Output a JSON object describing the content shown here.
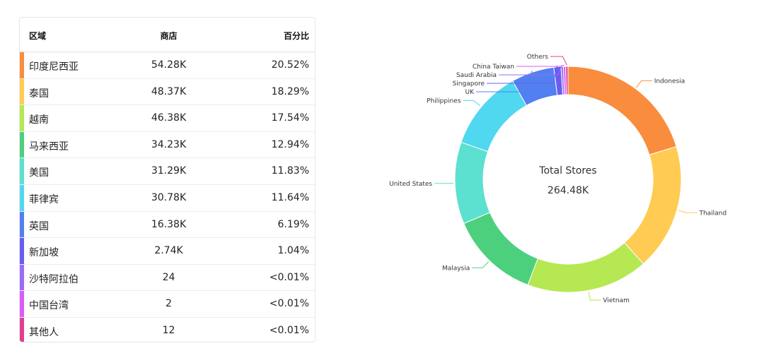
{
  "table": {
    "headers": {
      "region": "区域",
      "stores": "商店",
      "percent": "百分比"
    },
    "rows": [
      {
        "region": "印度尼西亚",
        "stores": "54.28K",
        "percent": "20.52%",
        "color": "#fa8c3e"
      },
      {
        "region": "泰国",
        "stores": "48.37K",
        "percent": "18.29%",
        "color": "#ffcb52"
      },
      {
        "region": "越南",
        "stores": "46.38K",
        "percent": "17.54%",
        "color": "#b5e853"
      },
      {
        "region": "马来西亚",
        "stores": "34.23K",
        "percent": "12.94%",
        "color": "#4cd07d"
      },
      {
        "region": "美国",
        "stores": "31.29K",
        "percent": "11.83%",
        "color": "#5ce0d0"
      },
      {
        "region": "菲律宾",
        "stores": "30.78K",
        "percent": "11.64%",
        "color": "#4fd8ef"
      },
      {
        "region": "英国",
        "stores": "16.38K",
        "percent": "6.19%",
        "color": "#5280f0"
      },
      {
        "region": "新加坡",
        "stores": "2.74K",
        "percent": "1.04%",
        "color": "#6a5cf0"
      },
      {
        "region": "沙特阿拉伯",
        "stores": "24",
        "percent": "<0.01%",
        "color": "#9b6cf5"
      },
      {
        "region": "中国台湾",
        "stores": "2",
        "percent": "<0.01%",
        "color": "#d95cf5"
      },
      {
        "region": "其他人",
        "stores": "12",
        "percent": "<0.01%",
        "color": "#e0408f"
      }
    ]
  },
  "chart_data": {
    "type": "pie",
    "donut": true,
    "center_title": "Total Stores",
    "center_value": "264.48K",
    "total": 264480,
    "slices": [
      {
        "label": "Indonesia",
        "value": 54280,
        "color": "#fa8c3e"
      },
      {
        "label": "Thailand",
        "value": 48370,
        "color": "#ffcb52"
      },
      {
        "label": "Vietnam",
        "value": 46380,
        "color": "#b5e853"
      },
      {
        "label": "Malaysia",
        "value": 34230,
        "color": "#4cd07d"
      },
      {
        "label": "United States",
        "value": 31290,
        "color": "#5ce0d0"
      },
      {
        "label": "Philippines",
        "value": 30780,
        "color": "#4fd8ef"
      },
      {
        "label": "UK",
        "value": 16380,
        "color": "#5280f0"
      },
      {
        "label": "Singapore",
        "value": 2740,
        "color": "#6a5cf0"
      },
      {
        "label": "Saudi Arabia",
        "value": 24,
        "color": "#9b6cf5"
      },
      {
        "label": "China Taiwan",
        "value": 2,
        "color": "#d95cf5"
      },
      {
        "label": "Others",
        "value": 12,
        "color": "#e0408f"
      }
    ]
  }
}
